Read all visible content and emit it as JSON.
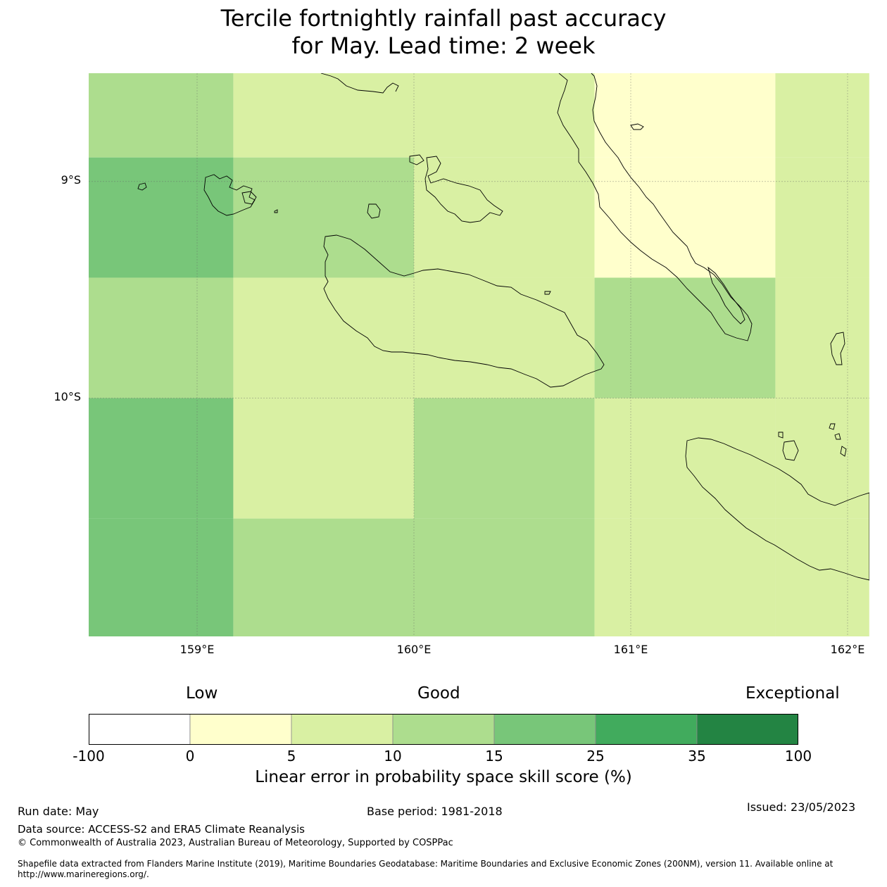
{
  "title_line1": "Tercile fortnightly rainfall past accuracy",
  "title_line2": "for May. Lead time: 2 week",
  "map": {
    "lon_range": [
      158.5,
      162.1
    ],
    "lat_range": [
      -11.1,
      -8.5
    ],
    "lat_ticks": [
      {
        "value": -9,
        "label": "9°S"
      },
      {
        "value": -10,
        "label": "10°S"
      }
    ],
    "lon_ticks": [
      {
        "value": 159,
        "label": "159°E"
      },
      {
        "value": 160,
        "label": "160°E"
      },
      {
        "value": 161,
        "label": "161°E"
      },
      {
        "value": 162,
        "label": "162°E"
      }
    ],
    "grid_lines": true,
    "cell_lon_edges": [
      158.5,
      159.167,
      160.0,
      160.833,
      161.667,
      162.1
    ],
    "cell_lat_edges": [
      -8.5,
      -8.889,
      -9.444,
      -10.0,
      -10.556,
      -11.1
    ],
    "cell_classes": [
      [
        3,
        2,
        2,
        1,
        2
      ],
      [
        4,
        3,
        2,
        1,
        2
      ],
      [
        3,
        2,
        2,
        3,
        2
      ],
      [
        4,
        2,
        3,
        2,
        2
      ],
      [
        4,
        3,
        3,
        2,
        2
      ]
    ],
    "land_color": "none",
    "coast_color": "#000000"
  },
  "colorbar": {
    "category_low": "Low",
    "category_good": "Good",
    "category_exceptional": "Exceptional",
    "boundaries": [
      "-100",
      "0",
      "5",
      "10",
      "15",
      "25",
      "35",
      "100"
    ],
    "colors": [
      "#ffffff",
      "#ffffcc",
      "#d9f0a3",
      "#addd8e",
      "#78c679",
      "#41ab5d",
      "#238443"
    ],
    "label": "Linear error in probability space skill score (%)"
  },
  "footer": {
    "run_date": "Run date: May",
    "base_period": "Base period: 1981-2018",
    "issued": "Issued: 23/05/2023",
    "data_source": "Data source: ACCESS-S2 and ERA5 Climate Reanalysis",
    "copyright": "© Commonwealth of Australia 2023, Australian Bureau of Meteorology, Supported by COSPPac",
    "shapefile_line1": "Shapefile data extracted from Flanders Marine Institute (2019), Maritime Boundaries Geodatabase: Maritime Boundaries and Exclusive Economic Zones (200NM), version 11. Available online at",
    "shapefile_line2": "http://www.marineregions.org/."
  }
}
